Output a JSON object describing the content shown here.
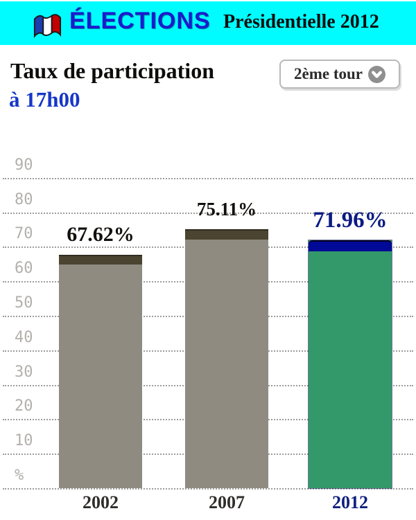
{
  "header": {
    "background_color": "#00FCFF",
    "flag_icon": "french-flag-icon",
    "brand": "ÉLECTIONS",
    "brand_color": "#1b1bcd",
    "edition": "Présidentielle 2012"
  },
  "panel": {
    "title": "Taux de participation",
    "subtitle": "à 17h00",
    "subtitle_color": "#1637c6",
    "round_selector": {
      "label": "2ème tour",
      "icon": "chevron-down-icon"
    }
  },
  "chart_data": {
    "type": "bar",
    "title": "Taux de participation à 17h00",
    "categories": [
      "2002",
      "2007",
      "2012"
    ],
    "values": [
      67.62,
      75.11,
      71.96
    ],
    "value_labels": [
      "67.62%",
      "75.11%",
      "71.96%"
    ],
    "value_label_colors": [
      "#12100d",
      "#12100d",
      "#0c1c82"
    ],
    "category_label_colors": [
      "#2f2d29",
      "#2f2d29",
      "#10207e"
    ],
    "bar_colors": [
      "#8f8b81",
      "#8f8b81",
      "#34996a"
    ],
    "bar_cap_colors": [
      "#4a4430",
      "#4a4430",
      "#000a96"
    ],
    "xlabel": "",
    "ylabel": "%",
    "ylim": [
      0,
      90
    ],
    "ytick_step": 10,
    "ytick_labels": [
      "90",
      "80",
      "70",
      "60",
      "50",
      "40",
      "30",
      "20",
      "10",
      "%"
    ],
    "grid": "horizontal-dotted",
    "legend": "none"
  }
}
